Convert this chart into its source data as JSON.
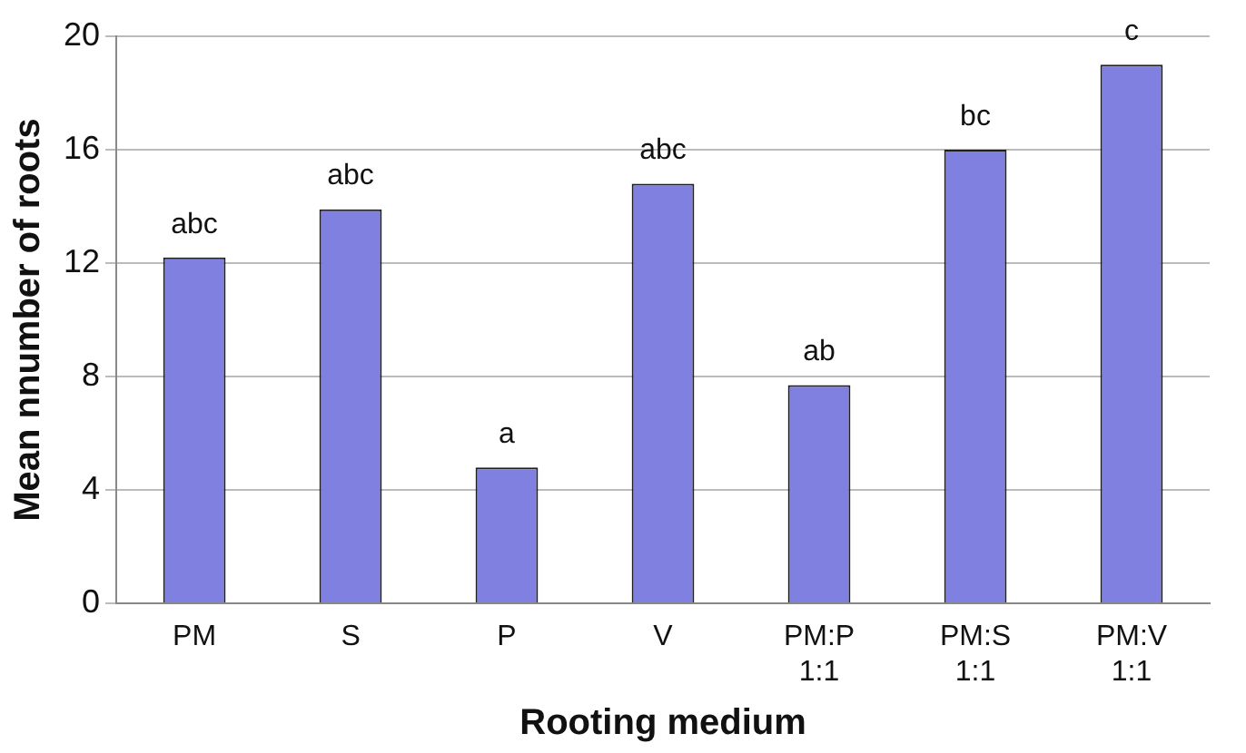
{
  "chart_data": {
    "type": "bar",
    "xlabel": "Rooting medium",
    "ylabel": "Mean nnumber of roots",
    "categories": [
      "PM",
      "S",
      "P",
      "V",
      "PM:P 1:1",
      "PM:S 1:1",
      "PM:V 1:1"
    ],
    "values": [
      12.2,
      13.9,
      4.8,
      14.8,
      7.7,
      16.0,
      19.0
    ],
    "color": "#8080e0",
    "ylim": [
      0,
      20
    ],
    "yticks": [
      0,
      4,
      8,
      12,
      16,
      20
    ],
    "grid": "y",
    "annotations": [
      {
        "text": "abc",
        "x": "PM",
        "y": 12.2
      },
      {
        "text": "abc",
        "x": "S",
        "y": 13.9
      },
      {
        "text": "a",
        "x": "P",
        "y": 4.8
      },
      {
        "text": "abc",
        "x": "V",
        "y": 14.8
      },
      {
        "text": "ab",
        "x": "PM:P 1:1",
        "y": 7.7
      },
      {
        "text": "bc",
        "x": "PM:S 1:1",
        "y": 16.0
      },
      {
        "text": "c",
        "x": "PM:V 1:1",
        "y": 19.0
      }
    ]
  }
}
